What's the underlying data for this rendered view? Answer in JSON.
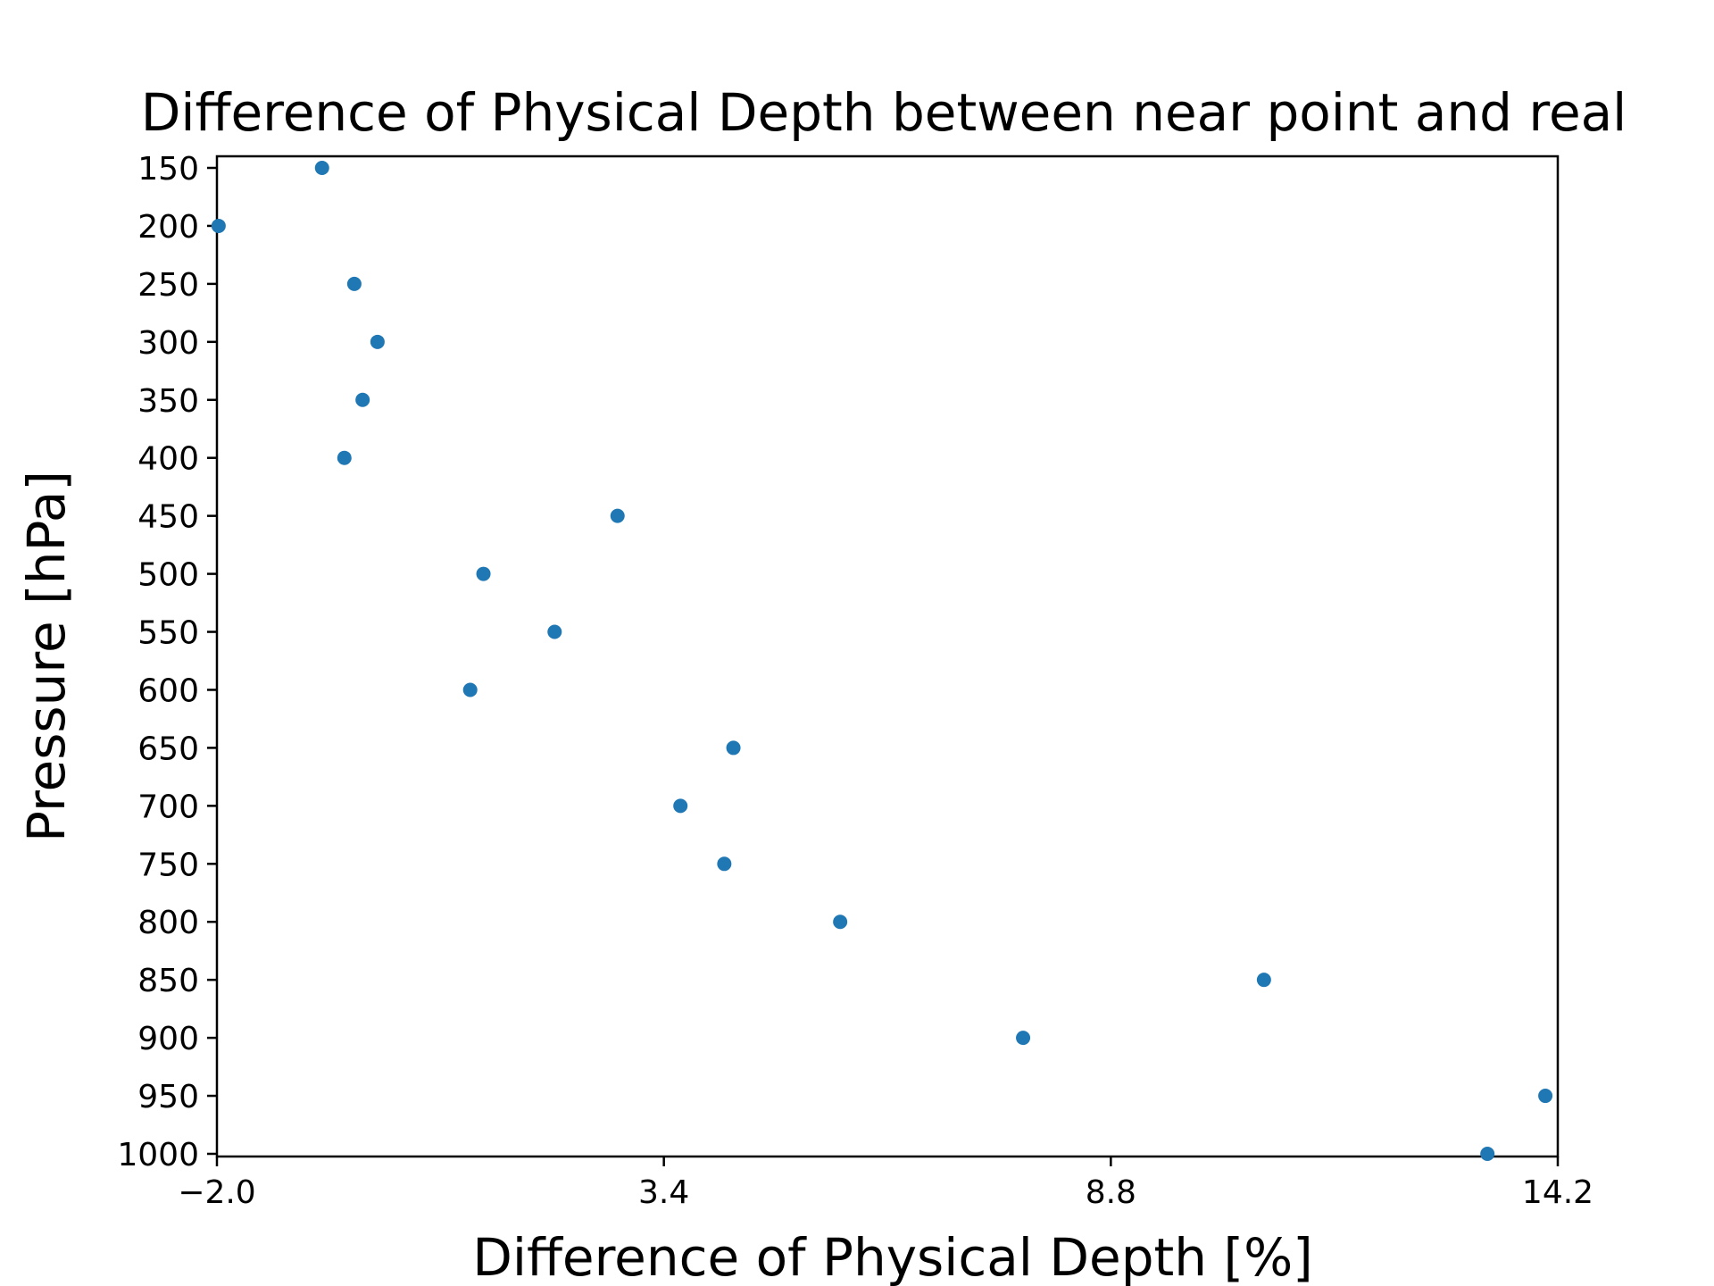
{
  "chart_data": {
    "type": "scatter",
    "title": "Difference of Physical Depth between near point and real",
    "xlabel": "Difference of Physical Depth [%]",
    "ylabel": "Pressure [hPa]",
    "xlim": [
      -2.0,
      14.2
    ],
    "ylim": [
      1000,
      150
    ],
    "y_inverted": true,
    "x_ticks": [
      -2.0,
      3.4,
      8.8,
      14.2
    ],
    "x_tick_labels": [
      "−2.0",
      "3.4",
      "8.8",
      "14.2"
    ],
    "y_ticks": [
      150,
      200,
      250,
      300,
      350,
      400,
      450,
      500,
      550,
      600,
      650,
      700,
      750,
      800,
      850,
      900,
      950,
      1000
    ],
    "y_tick_labels": [
      "150",
      "200",
      "250",
      "300",
      "350",
      "400",
      "450",
      "500",
      "550",
      "600",
      "650",
      "700",
      "750",
      "800",
      "850",
      "900",
      "950",
      "1000"
    ],
    "grid": false,
    "legend": "none",
    "marker_color": "#1f77b4",
    "points": [
      {
        "x": -0.73,
        "y": 150
      },
      {
        "x": -1.98,
        "y": 200
      },
      {
        "x": -0.34,
        "y": 250
      },
      {
        "x": -0.06,
        "y": 300
      },
      {
        "x": -0.24,
        "y": 350
      },
      {
        "x": -0.46,
        "y": 400
      },
      {
        "x": 2.84,
        "y": 450
      },
      {
        "x": 1.22,
        "y": 500
      },
      {
        "x": 2.08,
        "y": 550
      },
      {
        "x": 1.06,
        "y": 600
      },
      {
        "x": 4.24,
        "y": 650
      },
      {
        "x": 3.6,
        "y": 700
      },
      {
        "x": 4.13,
        "y": 750
      },
      {
        "x": 5.53,
        "y": 800
      },
      {
        "x": 10.65,
        "y": 850
      },
      {
        "x": 7.74,
        "y": 900
      },
      {
        "x": 14.05,
        "y": 950
      },
      {
        "x": 13.35,
        "y": 1000
      }
    ]
  }
}
